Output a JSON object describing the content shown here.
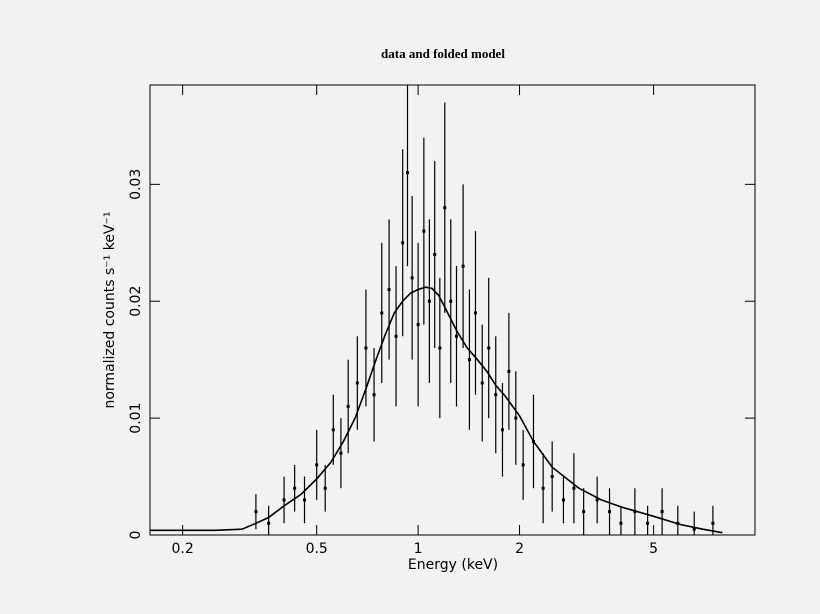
{
  "chart_data": {
    "type": "scatter",
    "title": "data and folded model",
    "x_label": "Energy (keV)",
    "y_label": "normalized counts s⁻¹ keV⁻¹",
    "xscale": "log",
    "xlim": [
      0.16,
      10
    ],
    "ylim": [
      0,
      0.0385
    ],
    "xticks": [
      0.2,
      0.5,
      1,
      2,
      5
    ],
    "yticks": [
      0,
      0.01,
      0.02,
      0.03
    ],
    "color": "#000000",
    "points": {
      "x": [
        0.33,
        0.36,
        0.4,
        0.43,
        0.46,
        0.5,
        0.53,
        0.56,
        0.59,
        0.62,
        0.66,
        0.7,
        0.74,
        0.78,
        0.82,
        0.86,
        0.9,
        0.93,
        0.96,
        1.0,
        1.04,
        1.08,
        1.12,
        1.16,
        1.2,
        1.25,
        1.3,
        1.36,
        1.42,
        1.48,
        1.55,
        1.62,
        1.7,
        1.78,
        1.86,
        1.95,
        2.05,
        2.2,
        2.35,
        2.5,
        2.7,
        2.9,
        3.1,
        3.4,
        3.7,
        4.0,
        4.4,
        4.8,
        5.3,
        5.9,
        6.6,
        7.5
      ],
      "y": [
        0.002,
        0.001,
        0.003,
        0.004,
        0.003,
        0.006,
        0.004,
        0.009,
        0.007,
        0.011,
        0.013,
        0.016,
        0.012,
        0.019,
        0.021,
        0.017,
        0.025,
        0.031,
        0.022,
        0.018,
        0.026,
        0.02,
        0.024,
        0.016,
        0.028,
        0.02,
        0.017,
        0.023,
        0.015,
        0.019,
        0.013,
        0.016,
        0.012,
        0.009,
        0.014,
        0.01,
        0.006,
        0.008,
        0.004,
        0.005,
        0.003,
        0.004,
        0.002,
        0.003,
        0.002,
        0.001,
        0.002,
        0.001,
        0.002,
        0.001,
        0.0005,
        0.001
      ],
      "yerr": [
        0.0015,
        0.0015,
        0.002,
        0.002,
        0.002,
        0.003,
        0.002,
        0.003,
        0.003,
        0.004,
        0.004,
        0.005,
        0.004,
        0.006,
        0.006,
        0.006,
        0.008,
        0.008,
        0.007,
        0.007,
        0.008,
        0.007,
        0.008,
        0.006,
        0.009,
        0.007,
        0.006,
        0.007,
        0.006,
        0.007,
        0.005,
        0.006,
        0.005,
        0.004,
        0.005,
        0.004,
        0.003,
        0.004,
        0.003,
        0.003,
        0.002,
        0.003,
        0.002,
        0.002,
        0.002,
        0.0015,
        0.002,
        0.0015,
        0.002,
        0.0015,
        0.0015,
        0.0015
      ]
    },
    "model": {
      "x": [
        0.16,
        0.25,
        0.3,
        0.33,
        0.36,
        0.4,
        0.45,
        0.5,
        0.55,
        0.6,
        0.65,
        0.7,
        0.75,
        0.8,
        0.85,
        0.9,
        0.95,
        1.0,
        1.05,
        1.1,
        1.15,
        1.2,
        1.3,
        1.4,
        1.5,
        1.6,
        1.7,
        1.8,
        2.0,
        2.2,
        2.5,
        3.0,
        3.5,
        4.0,
        5.0,
        6.0,
        7.0,
        8.0
      ],
      "y": [
        0.0004,
        0.0004,
        0.0005,
        0.001,
        0.0015,
        0.0025,
        0.0035,
        0.0048,
        0.0062,
        0.008,
        0.01,
        0.0125,
        0.015,
        0.0172,
        0.019,
        0.02,
        0.0207,
        0.021,
        0.0212,
        0.0211,
        0.0205,
        0.0195,
        0.0175,
        0.016,
        0.015,
        0.014,
        0.0128,
        0.012,
        0.0102,
        0.008,
        0.0058,
        0.004,
        0.003,
        0.0024,
        0.0016,
        0.0009,
        0.0005,
        0.0002
      ]
    }
  }
}
